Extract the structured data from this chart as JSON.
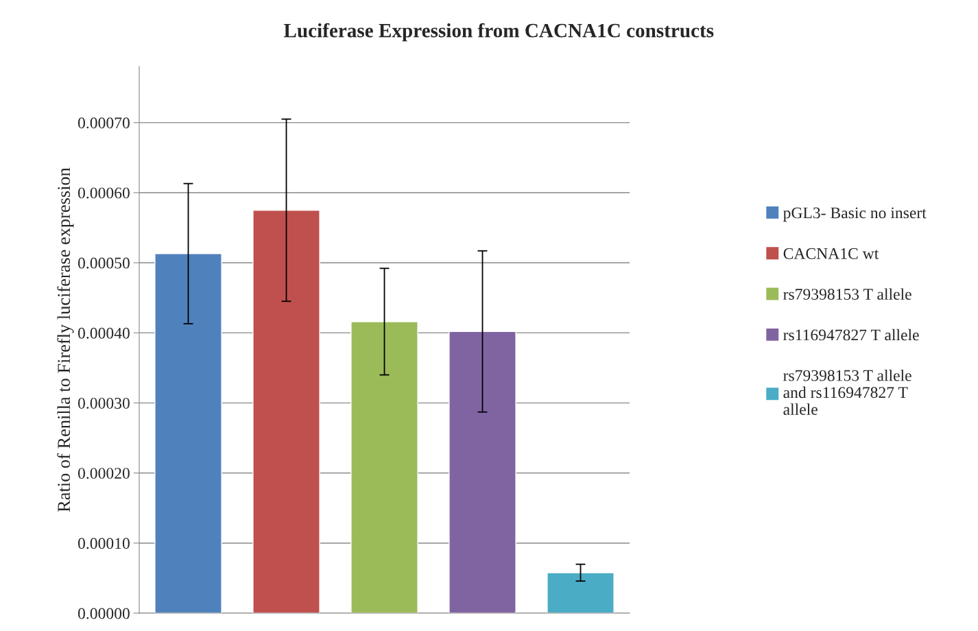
{
  "chart_data": {
    "type": "bar",
    "title": "Luciferase Expression from CACNA1C constructs",
    "ylabel": "Ratio of Renilla to Firefly luciferase expression",
    "categories": [
      null,
      null,
      null,
      null,
      null
    ],
    "series": [
      {
        "name": "pGL3- Basic no insert",
        "color": "#4f81bd",
        "values": [
          0.000513,
          null,
          null,
          null,
          null
        ],
        "errors": [
          0.0001,
          null,
          null,
          null,
          null
        ]
      },
      {
        "name": "CACNA1C wt",
        "color": "#c0504d",
        "values": [
          null,
          0.000575,
          null,
          null,
          null
        ],
        "errors": [
          null,
          0.00013,
          null,
          null,
          null
        ]
      },
      {
        "name": "rs79398153 T allele",
        "color": "#9bbb59",
        "values": [
          null,
          null,
          0.000416,
          null,
          null
        ],
        "errors": [
          null,
          null,
          7.6e-05,
          null,
          null
        ]
      },
      {
        "name": "rs116947827 T allele",
        "color": "#8064a2",
        "values": [
          null,
          null,
          null,
          0.000402,
          null
        ],
        "errors": [
          null,
          null,
          null,
          0.000115,
          null
        ]
      },
      {
        "name": "rs79398153 T allele\nand rs116947827 T\nallele",
        "color": "#4bacc6",
        "values": [
          null,
          null,
          null,
          null,
          5.78e-05
        ],
        "errors": [
          null,
          null,
          null,
          null,
          1.2e-05
        ]
      }
    ],
    "ylim": [
      0,
      0.00078
    ],
    "yticks": [
      {
        "value": 0,
        "label": "0.00000"
      },
      {
        "value": 0.0001,
        "label": "0.00010"
      },
      {
        "value": 0.0002,
        "label": "0.00020"
      },
      {
        "value": 0.0003,
        "label": "0.00030"
      },
      {
        "value": 0.0004,
        "label": "0.00040"
      },
      {
        "value": 0.0005,
        "label": "0.00050"
      },
      {
        "value": 0.0006,
        "label": "0.00060"
      },
      {
        "value": 0.0007,
        "label": "0.00070"
      }
    ],
    "grid": "y",
    "legend": "right"
  }
}
